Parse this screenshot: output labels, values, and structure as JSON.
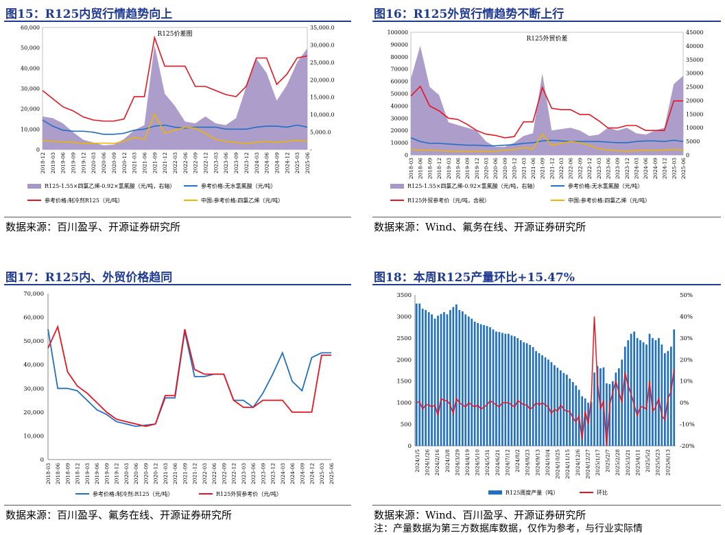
{
  "colors": {
    "title": "#1f3a93",
    "purple": "#a898c8",
    "red": "#e8131f",
    "blue": "#1f6fc2",
    "orange": "#f0b400",
    "bar": "#1f6fc2"
  },
  "panels": {
    "fig15": {
      "title": "图15：R125内贸行情趋势向上",
      "source": "数据来源：百川盈孚、开源证券研究所"
    },
    "fig16": {
      "title": "图16：R125外贸行情趋势不断上行",
      "source": "数据来源：Wind、氟务在线、开源证券研究所"
    },
    "fig17": {
      "title": "图17：R125内、外贸价格趋同",
      "source": "数据来源：百川盈孚、氟务在线、开源证券研究所"
    },
    "fig18": {
      "title": "图18：本周R125产量环比+15.47%",
      "source": "数据来源：Wind、百川盈孚、开源证券研究所",
      "note": "注：产量数据为第三方数据库数据，仅作为参考，与行业实际情"
    }
  },
  "chart_data": [
    {
      "id": "fig15",
      "type": "area+line",
      "title": "R125价差图",
      "x": [
        "2018-12",
        "2019-03",
        "2019-06",
        "2019-09",
        "2019-12",
        "2020-03",
        "2020-06",
        "2020-09",
        "2020-12",
        "2021-03",
        "2021-06",
        "2021-09",
        "2021-12",
        "2022-03",
        "2022-06",
        "2022-09",
        "2022-12",
        "2023-03",
        "2023-06",
        "2023-09",
        "2023-12",
        "2024-03",
        "2024-06",
        "2024-09",
        "2024-12",
        "2025-03",
        "2025-06"
      ],
      "ylim": [
        0,
        60000
      ],
      "ylim_right": [
        0,
        35000
      ],
      "yticks_left": [
        "0",
        "10,000",
        "20,000",
        "30,000",
        "40,000",
        "50,000",
        "60,000"
      ],
      "yticks_right": [
        "-",
        "5,000.0",
        "10,000.0",
        "15,000.0",
        "20,000.0",
        "25,000.0",
        "30,000.0",
        "35,000.0"
      ],
      "series": [
        {
          "name": "R125-1.55×四氯乙烯-0.92×氢氟酸（元/吨，右轴）",
          "type": "area",
          "axis": "right",
          "values": [
            9500,
            9000,
            7500,
            5000,
            2800,
            2000,
            1200,
            1400,
            3000,
            5500,
            7000,
            30000,
            16000,
            12500,
            8000,
            7500,
            9500,
            7500,
            7000,
            9000,
            18000,
            26000,
            22000,
            14000,
            18500,
            25000,
            29000
          ]
        },
        {
          "name": "参考价格:无水氢氟酸（元/吨）",
          "type": "line",
          "axis": "left",
          "values": [
            14500,
            11500,
            9500,
            9000,
            9000,
            8500,
            7500,
            7500,
            8000,
            9500,
            10000,
            11500,
            12000,
            11000,
            10500,
            11000,
            11000,
            11000,
            10000,
            10000,
            10000,
            11000,
            11500,
            11500,
            11000,
            12000,
            11000
          ]
        },
        {
          "name": "参考价格:制冷剂R125（元/吨）",
          "type": "line",
          "axis": "left",
          "values": [
            29000,
            25000,
            21000,
            19000,
            16000,
            14500,
            14000,
            14000,
            15000,
            26000,
            26000,
            55000,
            41000,
            41000,
            41000,
            31000,
            31000,
            29000,
            27000,
            26000,
            31000,
            45000,
            45000,
            32000,
            37000,
            45000,
            46000
          ]
        },
        {
          "name": "中国:参考价格:四氯乙烯（元/吨）",
          "type": "line",
          "axis": "left",
          "values": [
            4500,
            4000,
            3800,
            3500,
            3000,
            3000,
            3200,
            3000,
            4000,
            6000,
            5000,
            17500,
            8000,
            9500,
            11000,
            10500,
            8000,
            5000,
            4000,
            3500,
            3000,
            3500,
            4000,
            3500,
            4000,
            4500,
            4000
          ]
        }
      ]
    },
    {
      "id": "fig16",
      "type": "area+line",
      "title": "R125外贸价差",
      "x": [
        "2018-03",
        "2018-06",
        "2018-09",
        "2018-12",
        "2019-03",
        "2019-06",
        "2019-09",
        "2019-12",
        "2020-03",
        "2020-06",
        "2020-09",
        "2020-12",
        "2021-03",
        "2021-06",
        "2021-09",
        "2021-12",
        "2022-03",
        "2022-06",
        "2022-09",
        "2022-12",
        "2023-03",
        "2023-06",
        "2023-09",
        "2023-12",
        "2024-03",
        "2024-06",
        "2024-09",
        "2024-12",
        "2025-03",
        "2025-06"
      ],
      "ylim": [
        0,
        100000
      ],
      "ylim_right": [
        0,
        45000
      ],
      "yticks_left": [
        "0",
        "10000",
        "20000",
        "30000",
        "40000",
        "50000",
        "60000",
        "70000",
        "80000",
        "90000",
        "100000"
      ],
      "yticks_right": [
        "0",
        "5000",
        "10000",
        "15000",
        "20000",
        "25000",
        "30000",
        "35000",
        "40000",
        "45000"
      ],
      "series": [
        {
          "name": "R125-1.55×四氯乙烯-0.92×氢氟酸（元/吨，右轴）",
          "type": "area",
          "axis": "right",
          "values": [
            28000,
            40000,
            25000,
            22000,
            12000,
            11000,
            10000,
            9000,
            5000,
            3000,
            3000,
            4500,
            7000,
            8000,
            30000,
            9000,
            9500,
            10000,
            9000,
            7000,
            7500,
            10000,
            9000,
            10000,
            8000,
            7500,
            9000,
            10000,
            26000,
            29000
          ]
        },
        {
          "name": "R125外贸参考价（元/吨，含税）",
          "type": "line",
          "axis": "left",
          "values": [
            48000,
            56000,
            40000,
            36000,
            30000,
            29000,
            25000,
            20000,
            17000,
            16000,
            14000,
            15000,
            27000,
            27000,
            55000,
            38000,
            37000,
            37000,
            33000,
            33000,
            28000,
            22000,
            22000,
            24000,
            24000,
            20000,
            20000,
            20000,
            44000,
            44000
          ]
        },
        {
          "name": "参考价格:无水氢氟酸（元/吨）",
          "type": "line",
          "axis": "left",
          "values": [
            14000,
            11000,
            9500,
            9500,
            9000,
            8500,
            8000,
            8000,
            7500,
            7500,
            8000,
            8500,
            9500,
            10000,
            11500,
            12000,
            11500,
            11000,
            11000,
            11000,
            11000,
            10500,
            10000,
            10000,
            11000,
            11500,
            11500,
            11000,
            12000,
            11000
          ]
        },
        {
          "name": "中国:参考价格:四氯乙烯（元/吨）",
          "type": "line",
          "axis": "left",
          "values": [
            4500,
            4000,
            3800,
            3500,
            3200,
            3000,
            3000,
            3000,
            3200,
            3000,
            4000,
            4500,
            6000,
            5000,
            17000,
            8000,
            9500,
            11000,
            10000,
            8000,
            5000,
            4000,
            3500,
            3000,
            3500,
            4000,
            3500,
            4000,
            4500,
            4000
          ]
        }
      ]
    },
    {
      "id": "fig17",
      "type": "line",
      "x": [
        "2018-03",
        "2018-06",
        "2018-09",
        "2018-12",
        "2019-03",
        "2019-06",
        "2019-09",
        "2019-12",
        "2020-03",
        "2020-06",
        "2020-09",
        "2020-12",
        "2021-03",
        "2021-06",
        "2021-09",
        "2021-12",
        "2022-03",
        "2022-06",
        "2022-09",
        "2022-12",
        "2023-03",
        "2023-06",
        "2023-09",
        "2023-12",
        "2024-03",
        "2024-06",
        "2024-09",
        "2024-12",
        "2025-03",
        "2025-06"
      ],
      "ylim": [
        0,
        70000
      ],
      "yticks": [
        "0",
        "10,000",
        "20,000",
        "30,000",
        "40,000",
        "50,000",
        "60,000",
        "70,000"
      ],
      "series": [
        {
          "name": "参考价格:制冷剂:R125（元/吨）",
          "values": [
            55000,
            30000,
            30000,
            29000,
            25000,
            21000,
            19000,
            16000,
            15000,
            14000,
            14500,
            15000,
            26000,
            26000,
            54000,
            35000,
            35000,
            36000,
            36000,
            25000,
            25000,
            22000,
            28000,
            36000,
            45000,
            33000,
            29000,
            43000,
            45000,
            45000
          ]
        },
        {
          "name": "R125外贸参考价（元/吨）",
          "values": [
            47000,
            56000,
            37000,
            31000,
            28000,
            24000,
            20000,
            17000,
            16000,
            15000,
            14000,
            15000,
            27000,
            27000,
            55000,
            38000,
            36000,
            36000,
            36000,
            25000,
            22000,
            22000,
            25000,
            25000,
            25000,
            20000,
            20000,
            20000,
            44000,
            44000
          ]
        }
      ]
    },
    {
      "id": "fig18",
      "type": "bar+line",
      "x_labels": [
        "2024/1/5",
        "2024/1/26",
        "2024/2/16",
        "2024/3/8",
        "2024/3/29",
        "2024/4/19",
        "2024/5/10",
        "2024/5/31",
        "2024/6/21",
        "2024/7/12",
        "2024/8/2",
        "2024/8/23",
        "2024/9/13",
        "2024/10/4",
        "2024/10/25",
        "2024/11/15",
        "2024/12/6",
        "2024/12/27",
        "2025/1/17",
        "2025/2/7",
        "2025/2/28",
        "2025/3/21",
        "2025/4/11",
        "2025/5/2",
        "2025/5/23",
        "2025/6/13"
      ],
      "ylim": [
        0,
        3500
      ],
      "ylim_right": [
        -20,
        50
      ],
      "yticks_left": [
        "0",
        "500",
        "1000",
        "1500",
        "2000",
        "2500",
        "3000",
        "3500"
      ],
      "yticks_right": [
        "-20%",
        "-10%",
        "0%",
        "10%",
        "20%",
        "30%",
        "40%",
        "50%"
      ],
      "series": [
        {
          "name": "R125周度产量（吨）",
          "type": "bar",
          "values": [
            3300,
            3300,
            3180,
            3150,
            3100,
            3050,
            2950,
            3020,
            3060,
            3100,
            3050,
            3150,
            3220,
            3280,
            3150,
            3120,
            3050,
            3000,
            2950,
            2880,
            2850,
            2820,
            2800,
            2780,
            2750,
            2700,
            2650,
            2640,
            2620,
            2600,
            2600,
            2560,
            2540,
            2500,
            2450,
            2400,
            2380,
            2340,
            2290,
            2200,
            2150,
            2100,
            2050,
            2000,
            1940,
            1870,
            1810,
            1750,
            1690,
            1650,
            1560,
            1480,
            1400,
            1300,
            1150,
            1100,
            1000,
            1020,
            1700,
            1850,
            1800,
            1820,
            1450,
            1430,
            1500,
            1700,
            1800,
            2000,
            2300,
            2450,
            2600,
            2650,
            2500,
            2450,
            2400,
            2350,
            2600,
            2500,
            2450,
            2500,
            2350,
            2150,
            2200,
            2300,
            2700
          ]
        },
        {
          "name": "环比",
          "type": "line",
          "axis": "right",
          "values": [
            0,
            0.5,
            -3,
            -1,
            -1,
            -2,
            -1,
            -6,
            2,
            1,
            1,
            -1,
            -5,
            2,
            0,
            -1,
            -2,
            0,
            -1,
            -2,
            -1,
            -3,
            -2,
            -1,
            1,
            0,
            -1,
            -2,
            0,
            0,
            0,
            -1,
            -2,
            1,
            0,
            -1,
            -1,
            -3,
            -2,
            0,
            -1,
            0,
            -1,
            -2,
            -5,
            -3,
            -4,
            -1,
            -3,
            -4,
            -4,
            -7,
            -9,
            -6,
            -17,
            -4,
            -10,
            2,
            40,
            10,
            -3,
            1,
            -20,
            -1,
            5,
            10,
            5,
            0,
            14,
            8,
            4,
            -1,
            -6,
            -2,
            -2,
            -3,
            10,
            -4,
            -2,
            2,
            -6,
            -8,
            2,
            5,
            15.47
          ]
        }
      ]
    }
  ],
  "fig15": {
    "inner_title": "R125价差图",
    "xticks": [
      "2018-12",
      "2019-03",
      "2019-06",
      "2019-09",
      "2019-12",
      "2020-03",
      "2020-06",
      "2020-09",
      "2020-12",
      "2021-03",
      "2021-06",
      "2021-09",
      "2021-12",
      "2022-03",
      "2022-06",
      "2022-09",
      "2022-12",
      "2023-03",
      "2023-06",
      "2023-09",
      "2023-12",
      "2024-03",
      "2024-06",
      "2024-09",
      "2024-12",
      "2025-03",
      "2025-06"
    ],
    "legend": [
      "R125-1.55×四氯乙烯-0.92×氢氟酸（元/吨，右轴）",
      "参考价格:无水氢氟酸（元/吨）",
      "参考价格:制冷剂R125（元/吨）",
      "中国:参考价格:四氯乙烯（元/吨）"
    ]
  },
  "fig16": {
    "inner_title": "R125外贸价差",
    "legend": [
      "R125-1.55×四氯乙烯-0.92×氢氟酸（元/吨，右轴）",
      "参考价格:无水氢氟酸（元/吨）",
      "R125外贸参考价（元/吨，含税）",
      "中国:参考价格:四氯乙烯（元/吨）"
    ]
  },
  "fig17": {
    "legend": [
      "参考价格:制冷剂:R125（元/吨）",
      "R125外贸参考价（元/吨）"
    ]
  },
  "fig18": {
    "legend": [
      "R125周度产量（吨）",
      "环比"
    ]
  }
}
